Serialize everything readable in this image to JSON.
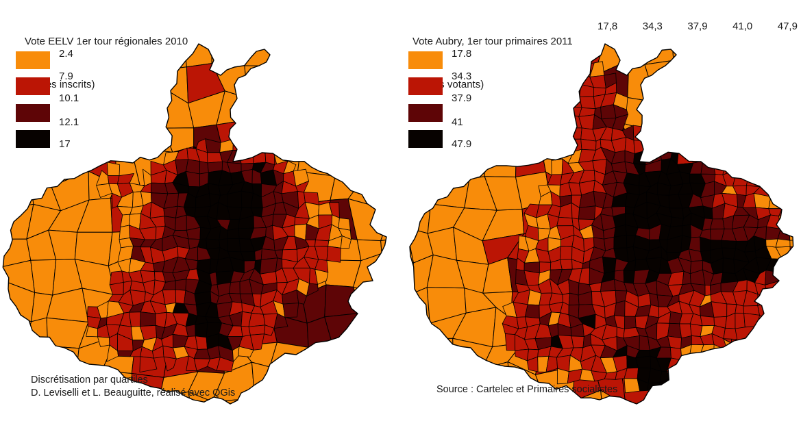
{
  "palette": {
    "classes": [
      "#F88C0A",
      "#BB1505",
      "#5E0506",
      "#070200"
    ],
    "border": "#000000",
    "text": "#1a1a1a",
    "background": "#ffffff"
  },
  "left_map": {
    "title_line1": "Vote EELV 1er tour régionales 2010",
    "title_line2": "(% des inscrits)",
    "legend_breaks": [
      "2.4",
      "7.9",
      "10.1",
      "12.1",
      "17"
    ],
    "annotation_line1": "Discrétisation par quartiles",
    "annotation_line2": "D. Leviselli et L. Beauguitte, réalisé avec QGis"
  },
  "right_map": {
    "title_line1": "Vote Aubry, 1er tour primaires 2011",
    "title_line2": "(% des votants)",
    "legend_breaks": [
      "17.8",
      "34.3",
      "37.9",
      "41",
      "47.9"
    ],
    "header_values": [
      "17,8",
      "34,3",
      "37,9",
      "41,0",
      "47,9"
    ],
    "annotation": "Source : Cartelec et Primaires socialistes"
  }
}
